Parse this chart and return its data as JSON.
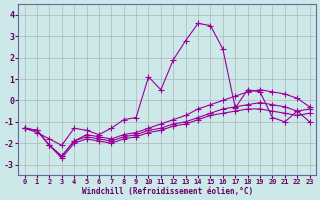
{
  "title": "",
  "xlabel": "Windchill (Refroidissement éolien,°C)",
  "ylabel": "",
  "background_color": "#cce8e8",
  "grid_color": "#aaaaaa",
  "line_color": "#990099",
  "xlim": [
    -0.5,
    23.5
  ],
  "ylim": [
    -3.5,
    4.5
  ],
  "yticks": [
    -3,
    -2,
    -1,
    0,
    1,
    2,
    3,
    4
  ],
  "xticks": [
    0,
    1,
    2,
    3,
    4,
    5,
    6,
    7,
    8,
    9,
    10,
    11,
    12,
    13,
    14,
    15,
    16,
    17,
    18,
    19,
    20,
    21,
    22,
    23
  ],
  "line1_x": [
    0,
    1,
    2,
    3,
    4,
    5,
    6,
    7,
    8,
    9,
    10,
    11,
    12,
    13,
    14,
    15,
    16,
    17,
    18,
    19,
    20,
    21,
    22,
    23
  ],
  "line1_y": [
    -1.3,
    -1.5,
    -1.8,
    -2.1,
    -1.3,
    -1.4,
    -1.6,
    -1.3,
    -0.9,
    -0.8,
    1.1,
    0.5,
    1.9,
    2.8,
    3.6,
    3.5,
    2.4,
    -0.35,
    0.5,
    0.4,
    -0.8,
    -1.0,
    -0.5,
    -1.0
  ],
  "line2_x": [
    0,
    1,
    2,
    3,
    4,
    5,
    6,
    7,
    8,
    9,
    10,
    11,
    12,
    13,
    14,
    15,
    16,
    17,
    18,
    19,
    20,
    21,
    22,
    23
  ],
  "line2_y": [
    -1.3,
    -1.4,
    -2.1,
    -2.6,
    -1.9,
    -1.6,
    -1.7,
    -1.8,
    -1.6,
    -1.5,
    -1.3,
    -1.1,
    -0.9,
    -0.7,
    -0.4,
    -0.2,
    -0.0,
    0.2,
    0.4,
    0.5,
    0.4,
    0.3,
    0.1,
    -0.3
  ],
  "line3_x": [
    0,
    1,
    2,
    3,
    4,
    5,
    6,
    7,
    8,
    9,
    10,
    11,
    12,
    13,
    14,
    15,
    16,
    17,
    18,
    19,
    20,
    21,
    22,
    23
  ],
  "line3_y": [
    -1.3,
    -1.4,
    -2.1,
    -2.6,
    -1.9,
    -1.7,
    -1.8,
    -1.9,
    -1.7,
    -1.6,
    -1.4,
    -1.3,
    -1.1,
    -1.0,
    -0.8,
    -0.6,
    -0.4,
    -0.3,
    -0.2,
    -0.1,
    -0.2,
    -0.3,
    -0.5,
    -0.4
  ],
  "line4_x": [
    0,
    1,
    2,
    3,
    4,
    5,
    6,
    7,
    8,
    9,
    10,
    11,
    12,
    13,
    14,
    15,
    16,
    17,
    18,
    19,
    20,
    21,
    22,
    23
  ],
  "line4_y": [
    -1.3,
    -1.4,
    -2.1,
    -2.7,
    -2.0,
    -1.8,
    -1.9,
    -2.0,
    -1.8,
    -1.7,
    -1.5,
    -1.4,
    -1.2,
    -1.1,
    -0.9,
    -0.7,
    -0.6,
    -0.5,
    -0.4,
    -0.4,
    -0.5,
    -0.6,
    -0.7,
    -0.6
  ]
}
